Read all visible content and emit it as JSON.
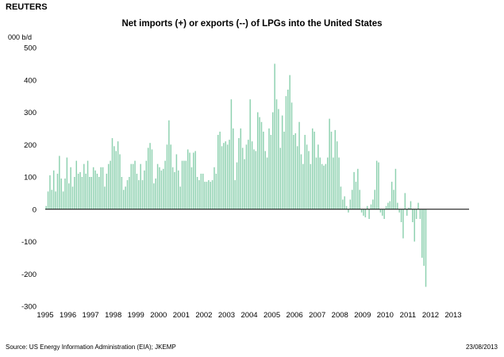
{
  "header": {
    "brand": "REUTERS",
    "title": "Net imports (+) or exports (--) of LPGs into the United States",
    "unit": "000 b/d"
  },
  "footer": {
    "source": "Source: US Energy Information Administration (EIA); JKEMP",
    "date": "23/08/2013"
  },
  "colors": {
    "bar": "#8ed1b0",
    "zero_line": "#000000"
  },
  "chart_data": {
    "type": "bar",
    "title": "Net imports (+) or exports (--) of LPGs into the United States",
    "ylabel": "000 b/d",
    "ylim": [
      -300,
      500
    ],
    "yticks": [
      500,
      400,
      300,
      200,
      100,
      0,
      -100,
      -200,
      -300
    ],
    "x_range": [
      1995,
      2013.7
    ],
    "xticks": [
      "1995",
      "1996",
      "1997",
      "1998",
      "1999",
      "2000",
      "2001",
      "2002",
      "2003",
      "2004",
      "2005",
      "2006",
      "2007",
      "2008",
      "2009",
      "2010",
      "2011",
      "2012",
      "2013"
    ],
    "frequency": "monthly",
    "start": "1995-01",
    "grid": false,
    "values": [
      10,
      55,
      105,
      60,
      120,
      55,
      110,
      165,
      95,
      55,
      95,
      160,
      80,
      130,
      70,
      100,
      150,
      110,
      115,
      100,
      140,
      110,
      150,
      100,
      100,
      130,
      120,
      110,
      100,
      130,
      130,
      70,
      110,
      140,
      150,
      220,
      195,
      180,
      210,
      170,
      100,
      60,
      70,
      90,
      100,
      140,
      140,
      150,
      110,
      90,
      140,
      90,
      120,
      150,
      190,
      205,
      185,
      80,
      95,
      140,
      130,
      120,
      125,
      150,
      200,
      275,
      200,
      130,
      115,
      170,
      120,
      70,
      150,
      150,
      150,
      185,
      175,
      130,
      175,
      180,
      100,
      90,
      110,
      110,
      85,
      85,
      90,
      85,
      90,
      130,
      110,
      230,
      240,
      195,
      205,
      210,
      200,
      215,
      340,
      250,
      90,
      145,
      220,
      250,
      190,
      155,
      200,
      215,
      340,
      210,
      185,
      180,
      300,
      285,
      270,
      240,
      180,
      160,
      250,
      230,
      300,
      450,
      340,
      310,
      190,
      290,
      240,
      350,
      370,
      415,
      330,
      230,
      235,
      195,
      270,
      170,
      140,
      230,
      200,
      180,
      140,
      250,
      240,
      160,
      200,
      160,
      140,
      135,
      140,
      160,
      280,
      240,
      160,
      245,
      210,
      160,
      70,
      30,
      40,
      10,
      -10,
      30,
      60,
      115,
      85,
      125,
      60,
      -10,
      -20,
      -25,
      10,
      -30,
      15,
      30,
      60,
      150,
      145,
      -10,
      -20,
      -30,
      10,
      20,
      25,
      85,
      60,
      125,
      20,
      -10,
      -40,
      -90,
      50,
      -20,
      5,
      25,
      -40,
      -100,
      -30,
      20,
      -30,
      -150,
      -175,
      -240
    ]
  }
}
